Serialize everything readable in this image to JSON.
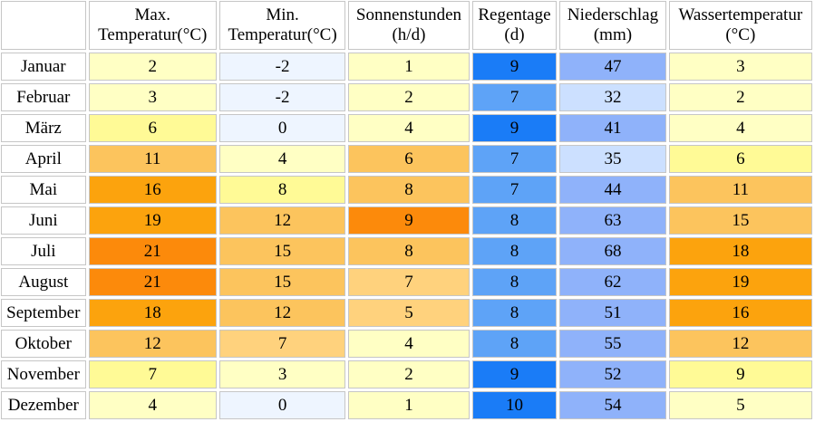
{
  "chart_data": {
    "type": "table",
    "columns": [
      {
        "line1": "Max.",
        "line2": "Temperatur(°C)"
      },
      {
        "line1": "Min.",
        "line2": "Temperatur(°C)"
      },
      {
        "line1": "Sonnenstunden",
        "line2": "(h/d)"
      },
      {
        "line1": "Regentage",
        "line2": "(d)"
      },
      {
        "line1": "Niederschlag",
        "line2": "(mm)"
      },
      {
        "line1": "Wassertemperatur",
        "line2": "(°C)"
      }
    ],
    "rows": [
      {
        "month": "Januar",
        "values": [
          "2",
          "-2",
          "1",
          "9",
          "47",
          "3"
        ]
      },
      {
        "month": "Februar",
        "values": [
          "3",
          "-2",
          "2",
          "7",
          "32",
          "2"
        ]
      },
      {
        "month": "März",
        "values": [
          "6",
          "0",
          "4",
          "9",
          "41",
          "4"
        ]
      },
      {
        "month": "April",
        "values": [
          "11",
          "4",
          "6",
          "7",
          "35",
          "6"
        ]
      },
      {
        "month": "Mai",
        "values": [
          "16",
          "8",
          "8",
          "7",
          "44",
          "11"
        ]
      },
      {
        "month": "Juni",
        "values": [
          "19",
          "12",
          "9",
          "8",
          "63",
          "15"
        ]
      },
      {
        "month": "Juli",
        "values": [
          "21",
          "15",
          "8",
          "8",
          "68",
          "18"
        ]
      },
      {
        "month": "August",
        "values": [
          "21",
          "15",
          "7",
          "8",
          "62",
          "19"
        ]
      },
      {
        "month": "September",
        "values": [
          "18",
          "12",
          "5",
          "8",
          "51",
          "16"
        ]
      },
      {
        "month": "Oktober",
        "values": [
          "12",
          "7",
          "4",
          "8",
          "55",
          "12"
        ]
      },
      {
        "month": "November",
        "values": [
          "7",
          "3",
          "2",
          "9",
          "52",
          "9"
        ]
      },
      {
        "month": "Dezember",
        "values": [
          "4",
          "0",
          "1",
          "10",
          "54",
          "5"
        ]
      }
    ]
  },
  "colors": {
    "very_cold": "#eef5ff",
    "cold": "#ffffc4",
    "mild": "#fffa96",
    "warm_light": "#ffd27d",
    "warm": "#fcc45d",
    "hot": "#fca30d",
    "very_hot": "#fc8a0b",
    "rain_days_9": "#1a7cf7",
    "rain_days_10": "#1a7cf7",
    "rain_days_8": "#5ea3f7",
    "rain_days_7": "#5ea3f7",
    "rain_mm_high": "#8fb2fa",
    "rain_mm_low": "#cce0ff"
  },
  "cell_colors": [
    [
      "cold",
      "very_cold",
      "cold",
      "rain_days_9",
      "rain_mm_high",
      "cold"
    ],
    [
      "cold",
      "very_cold",
      "cold",
      "rain_days_7",
      "rain_mm_low",
      "cold"
    ],
    [
      "mild",
      "very_cold",
      "cold",
      "rain_days_9",
      "rain_mm_high",
      "cold"
    ],
    [
      "warm",
      "cold",
      "warm",
      "rain_days_7",
      "rain_mm_low",
      "mild"
    ],
    [
      "hot",
      "mild",
      "warm",
      "rain_days_7",
      "rain_mm_high",
      "warm"
    ],
    [
      "hot",
      "warm",
      "very_hot",
      "rain_days_8",
      "rain_mm_high",
      "warm"
    ],
    [
      "very_hot",
      "warm",
      "warm",
      "rain_days_8",
      "rain_mm_high",
      "hot"
    ],
    [
      "very_hot",
      "warm",
      "warm_light",
      "rain_days_8",
      "rain_mm_high",
      "hot"
    ],
    [
      "hot",
      "warm",
      "warm_light",
      "rain_days_8",
      "rain_mm_high",
      "hot"
    ],
    [
      "warm",
      "warm_light",
      "cold",
      "rain_days_8",
      "rain_mm_high",
      "warm"
    ],
    [
      "mild",
      "cold",
      "cold",
      "rain_days_9",
      "rain_mm_high",
      "mild"
    ],
    [
      "cold",
      "very_cold",
      "cold",
      "rain_days_10",
      "rain_mm_high",
      "cold"
    ]
  ]
}
